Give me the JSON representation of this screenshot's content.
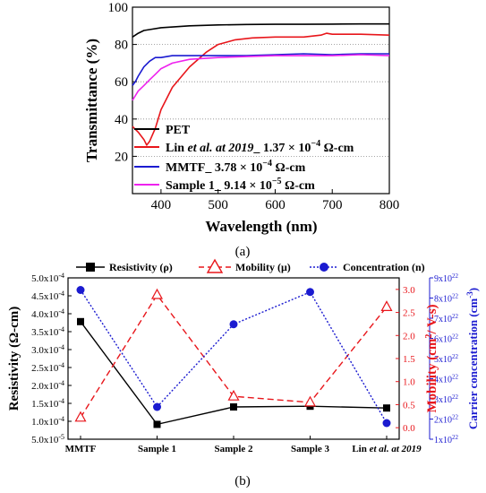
{
  "panels": {
    "a_label": "(a)",
    "b_label": "(b)"
  },
  "chart_data": [
    {
      "type": "line",
      "panel": "(a)",
      "xlabel": "Wavelength (nm)",
      "ylabel": "Transmittance (%)",
      "xlim": [
        350,
        800
      ],
      "ylim": [
        0,
        100
      ],
      "xticks": [
        "400",
        "500",
        "600",
        "700",
        "800"
      ],
      "yticks": [
        "20",
        "40",
        "60",
        "80",
        "100"
      ],
      "grid": "dotted horizontal",
      "legend_position": "bottom-left",
      "colors": {
        "PET": "#000000",
        "Lin": "#e8161b",
        "MMTF": "#1b1bd0",
        "Sample1": "#ee22ee"
      },
      "legend": {
        "pet": "PET",
        "lin_a": "Lin ",
        "lin_b": "et al. at 2019",
        "lin_c": "_ 1.37 × 10",
        "lin_exp": "−4",
        "lin_d": " Ω-cm",
        "mmtf_a": "MMTF_ 3.78 × 10",
        "mmtf_exp": "−4",
        "mmtf_b": " Ω-cm",
        "s1_a": "Sample 1_ 9.14 × 10",
        "s1_exp": "−5",
        "s1_b": " Ω-cm"
      },
      "series": [
        {
          "key": "PET",
          "x": [
            350,
            360,
            370,
            380,
            400,
            450,
            500,
            550,
            600,
            650,
            700,
            750,
            800
          ],
          "y": [
            84,
            86,
            87.5,
            88,
            89,
            90,
            90.5,
            90.7,
            90.8,
            90.8,
            90.9,
            91,
            91
          ]
        },
        {
          "key": "Lin",
          "x": [
            350,
            360,
            370,
            375,
            380,
            390,
            400,
            420,
            450,
            480,
            500,
            530,
            560,
            600,
            650,
            680,
            690,
            700,
            750,
            800
          ],
          "y": [
            36,
            33,
            29,
            26,
            28,
            35,
            45,
            57,
            68,
            76,
            80,
            82.5,
            83.5,
            84,
            84,
            85,
            86,
            85.5,
            85.5,
            85
          ]
        },
        {
          "key": "MMTF",
          "x": [
            350,
            355,
            360,
            370,
            380,
            390,
            400,
            420,
            450,
            500,
            550,
            600,
            650,
            700,
            750,
            800
          ],
          "y": [
            58,
            60,
            63,
            68,
            71,
            73,
            73,
            74,
            74,
            74,
            74,
            74.5,
            75,
            74.5,
            75,
            75
          ]
        },
        {
          "key": "Sample1",
          "x": [
            350,
            360,
            370,
            380,
            390,
            400,
            420,
            450,
            500,
            550,
            600,
            650,
            700,
            750,
            800
          ],
          "y": [
            50,
            55,
            58,
            61,
            64,
            67,
            70,
            72,
            73,
            73.5,
            74,
            74,
            74,
            74.5,
            74
          ]
        }
      ]
    },
    {
      "type": "line",
      "panel": "(b)",
      "categories": [
        "MMTF",
        "Sample 1",
        "Sample 2",
        "Sample 3",
        "Lin "
      ],
      "category_italic_suffix": "et al. at 2019",
      "ylabel": "Resistivity (Ω-cm)",
      "y2label_a": "Mobility (cm",
      "y2label_sup": "2",
      "y2label_b": "/ V-s)",
      "y3label_a": "Carrier concentration (cm",
      "y3label_sup": "-3",
      "y3label_b": ")",
      "ylim": [
        5e-05,
        0.0005
      ],
      "y2lim": [
        -0.25,
        3.25
      ],
      "y3lim": [
        1e+22,
        9e+22
      ],
      "yticks": [
        "5.0x10",
        "1.0x10",
        "1.5x10",
        "2.0x10",
        "2.5x10",
        "3.0x10",
        "3.5x10",
        "4.0x10",
        "4.5x10",
        "5.0x10"
      ],
      "ytick_exps": [
        "-5",
        "-4",
        "-4",
        "-4",
        "-4",
        "-4",
        "-4",
        "-4",
        "-4",
        "-4"
      ],
      "y2ticks": [
        "0.0",
        "0.5",
        "1.0",
        "1.5",
        "2.0",
        "2.5",
        "3.0"
      ],
      "y3ticks": [
        "1x10",
        "2x10",
        "3x10",
        "4x10",
        "5x10",
        "6x10",
        "7x10",
        "8x10",
        "9x10"
      ],
      "y3tick_exp": "22",
      "legend": {
        "resistivity": "Resistivity (ρ)",
        "mobility": "Mobility (μ)",
        "concentration": "Concentration (n)"
      },
      "colors": {
        "resistivity": "#000000",
        "mobility": "#e8161b",
        "concentration": "#1b1bd0"
      },
      "series": [
        {
          "key": "resistivity",
          "name": "Resistivity (ρ)",
          "values": [
            0.000378,
            9.14e-05,
            0.00014,
            0.000142,
            0.000137
          ]
        },
        {
          "key": "mobility",
          "name": "Mobility (μ)",
          "values": [
            0.22,
            2.88,
            0.68,
            0.55,
            2.62
          ]
        },
        {
          "key": "concentration",
          "name": "Concentration (n)",
          "values": [
            8.4e+22,
            2.6e+22,
            6.7e+22,
            8.3e+22,
            1.8e+22
          ]
        }
      ]
    }
  ]
}
